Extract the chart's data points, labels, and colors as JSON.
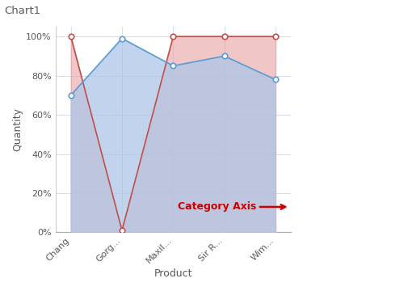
{
  "title": "Chart1",
  "xlabel": "Product",
  "ylabel": "Quantity",
  "categories": [
    "Chang",
    "Gorg...",
    "Maxil...",
    "Sir R...",
    "Wim..."
  ],
  "series1_values": [
    70,
    99,
    85,
    90,
    78
  ],
  "series2_values": [
    100,
    1,
    100,
    100,
    100
  ],
  "series1_fill_color": "#aec6e8",
  "series1_line_color": "#5b9bd5",
  "series1_fill_alpha": 0.75,
  "series2_fill_color": "#e8a0a0",
  "series2_line_color": "#c0504d",
  "series2_fill_alpha": 0.6,
  "marker1_face": "#ffffff",
  "marker1_edge": "#5b9bd5",
  "marker2_face": "#ffffff",
  "marker2_edge": "#c0504d",
  "bg_color": "#ffffff",
  "plot_bg_color": "#ffffff",
  "grid_color": "#d0d8e8",
  "title_color": "#595959",
  "label_color": "#595959",
  "tick_color": "#595959",
  "annotation_text": "Category Axis",
  "annotation_color": "#cc0000",
  "yticks": [
    0,
    20,
    40,
    60,
    80,
    100
  ],
  "ylim": [
    0,
    105
  ],
  "xlim_left": -0.3,
  "xlim_right": 4.3
}
